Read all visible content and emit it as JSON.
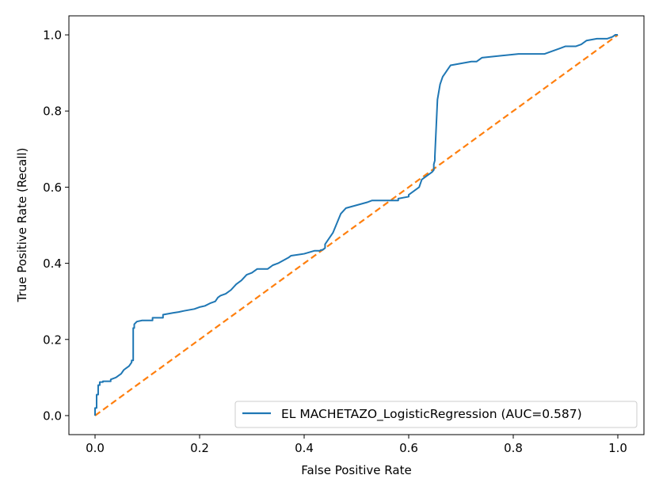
{
  "chart_data": {
    "type": "line",
    "title": "",
    "xlabel": "False Positive Rate",
    "ylabel": "True Positive Rate (Recall)",
    "xlim": [
      -0.05,
      1.05
    ],
    "ylim": [
      -0.05,
      1.05
    ],
    "xticks": [
      0.0,
      0.2,
      0.4,
      0.6,
      0.8,
      1.0
    ],
    "xtick_labels": [
      "0.0",
      "0.2",
      "0.4",
      "0.6",
      "0.8",
      "1.0"
    ],
    "yticks": [
      0.0,
      0.2,
      0.4,
      0.6,
      0.8,
      1.0
    ],
    "ytick_labels": [
      "0.0",
      "0.2",
      "0.4",
      "0.6",
      "0.8",
      "1.0"
    ],
    "grid": false,
    "legend_position": "lower-right",
    "colors": {
      "roc": "#1f77b4",
      "diagonal": "#ff7f0e"
    },
    "series": [
      {
        "name": "EL MACHETAZO_LogisticRegression (AUC=0.587)",
        "style": "solid",
        "color": "#1f77b4",
        "x": [
          0.0,
          0.0,
          0.003,
          0.003,
          0.006,
          0.006,
          0.009,
          0.009,
          0.015,
          0.015,
          0.03,
          0.03,
          0.04,
          0.045,
          0.05,
          0.055,
          0.06,
          0.065,
          0.07,
          0.07,
          0.073,
          0.073,
          0.075,
          0.075,
          0.08,
          0.09,
          0.11,
          0.11,
          0.13,
          0.13,
          0.15,
          0.16,
          0.17,
          0.19,
          0.2,
          0.21,
          0.22,
          0.23,
          0.235,
          0.24,
          0.25,
          0.26,
          0.27,
          0.28,
          0.29,
          0.3,
          0.31,
          0.33,
          0.335,
          0.34,
          0.35,
          0.37,
          0.375,
          0.4,
          0.42,
          0.43,
          0.432,
          0.435,
          0.44,
          0.44,
          0.445,
          0.455,
          0.47,
          0.48,
          0.52,
          0.53,
          0.58,
          0.58,
          0.6,
          0.6,
          0.62,
          0.625,
          0.635,
          0.645,
          0.648,
          0.648,
          0.65,
          0.65,
          0.655,
          0.66,
          0.665,
          0.67,
          0.675,
          0.68,
          0.72,
          0.73,
          0.74,
          0.81,
          0.85,
          0.86,
          0.87,
          0.88,
          0.89,
          0.9,
          0.92,
          0.93,
          0.94,
          0.96,
          0.98,
          0.99,
          0.995,
          1.0
        ],
        "y": [
          0.0,
          0.02,
          0.02,
          0.055,
          0.055,
          0.08,
          0.08,
          0.088,
          0.088,
          0.09,
          0.09,
          0.095,
          0.1,
          0.105,
          0.11,
          0.12,
          0.125,
          0.13,
          0.14,
          0.145,
          0.145,
          0.23,
          0.23,
          0.24,
          0.247,
          0.25,
          0.25,
          0.257,
          0.257,
          0.265,
          0.27,
          0.272,
          0.275,
          0.28,
          0.285,
          0.288,
          0.295,
          0.3,
          0.31,
          0.315,
          0.32,
          0.33,
          0.345,
          0.355,
          0.37,
          0.375,
          0.385,
          0.385,
          0.39,
          0.395,
          0.4,
          0.415,
          0.42,
          0.425,
          0.433,
          0.433,
          0.435,
          0.435,
          0.44,
          0.45,
          0.46,
          0.48,
          0.53,
          0.545,
          0.56,
          0.565,
          0.565,
          0.57,
          0.575,
          0.58,
          0.6,
          0.62,
          0.63,
          0.64,
          0.645,
          0.66,
          0.67,
          0.68,
          0.83,
          0.87,
          0.89,
          0.9,
          0.91,
          0.92,
          0.93,
          0.93,
          0.94,
          0.95,
          0.95,
          0.95,
          0.955,
          0.96,
          0.965,
          0.97,
          0.97,
          0.975,
          0.985,
          0.99,
          0.99,
          0.995,
          1.0,
          1.0
        ]
      },
      {
        "name": "",
        "style": "dashed",
        "color": "#ff7f0e",
        "x": [
          0.0,
          1.0
        ],
        "y": [
          0.0,
          1.0
        ]
      }
    ]
  }
}
